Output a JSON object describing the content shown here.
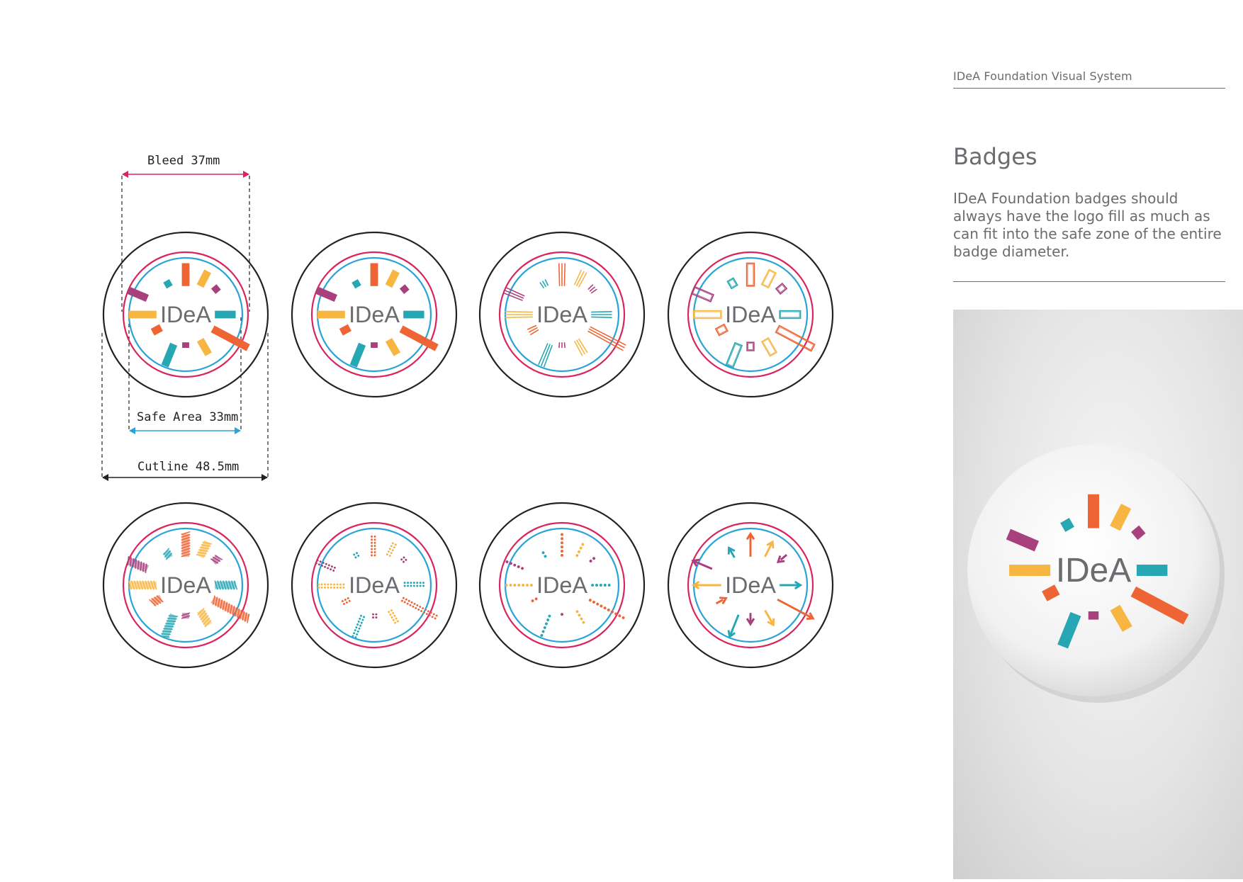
{
  "header": {
    "label": "IDeA Foundation Visual System"
  },
  "section": {
    "title": "Badges",
    "body": "IDeA Foundation badges should always have the logo fill as much as can fit into the safe zone of the entire badge diameter."
  },
  "dimensions": {
    "bleed": "Bleed 37mm",
    "safe_area": "Safe Area 33mm",
    "cutline": "Cutline 48.5mm"
  },
  "logo_text": "IDeA",
  "badge_styles": [
    "solid-bars",
    "solid-bars",
    "scribble-lines",
    "outline-rects",
    "hatched-bars",
    "dot-grid",
    "dotted-lines",
    "arrows"
  ],
  "colors": {
    "magenta": "#a8407e",
    "orange": "#ee6434",
    "yellow": "#f7b642",
    "teal": "#27a7b3",
    "cutline": "#222222",
    "bleed": "#d9245d",
    "safe": "#2aa3d8",
    "logo_grey": "#6b6b70"
  }
}
